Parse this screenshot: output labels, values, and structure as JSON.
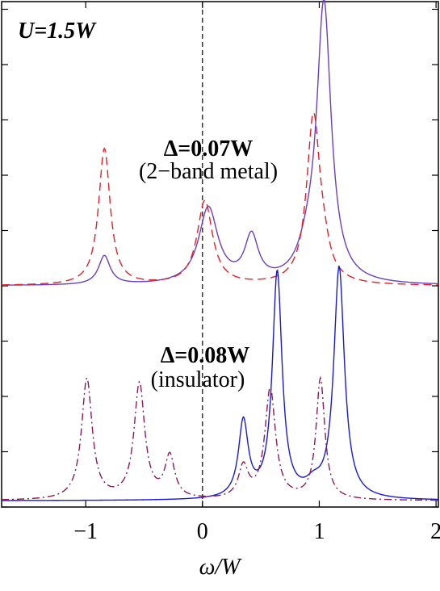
{
  "chart_data": {
    "type": "line",
    "xlabel": "ω/W",
    "ylabel": "",
    "xlim": [
      -1.72,
      2.02
    ],
    "ylim": [
      0,
      1
    ],
    "x_ticks": [
      -1,
      0,
      1,
      2
    ],
    "x_tick_labels": [
      "−1",
      "0",
      "1",
      "2"
    ],
    "grid": false,
    "annotations": {
      "u_label": "U=1.5W",
      "metal_line1": "Δ=0.07W",
      "metal_line2": "(2−band metal)",
      "insulator_line1": "Δ=0.08W",
      "insulator_line2": "(insulator)"
    },
    "fermi_level_x": 0,
    "colors": {
      "metal_solid": "#6a3fc0",
      "metal_dashed": "#e0202a",
      "insulator_solid": "#1a1ad0",
      "insulator_dashdot": "#8a1a5a"
    },
    "series": [
      {
        "id": "metal_solid",
        "style": "solid",
        "peaks": [
          [
            -0.84,
            0.055,
            0.06
          ],
          [
            0.05,
            0.145,
            0.1
          ],
          [
            0.42,
            0.085,
            0.07
          ],
          [
            1.04,
            0.53,
            0.075
          ],
          [
            0.9,
            0.04,
            0.1
          ]
        ],
        "baseline": 0.43,
        "dip": [
          -0.45,
          0.015
        ]
      },
      {
        "id": "metal_dashed",
        "style": "dashed",
        "peaks": [
          [
            -0.84,
            0.26,
            0.06
          ],
          [
            0.02,
            0.16,
            0.08
          ],
          [
            0.95,
            0.32,
            0.07
          ],
          [
            1.04,
            0.03,
            0.06
          ]
        ],
        "baseline": 0.43
      },
      {
        "id": "insulator_solid",
        "style": "solid",
        "peaks": [
          [
            0.35,
            0.145,
            0.05
          ],
          [
            0.64,
            0.43,
            0.05
          ],
          [
            1.17,
            0.44,
            0.055
          ],
          [
            0.95,
            0.02,
            0.08
          ]
        ],
        "baseline": 0.012
      },
      {
        "id": "insulator_dashdot",
        "style": "dashdot",
        "peaks": [
          [
            -0.99,
            0.23,
            0.055
          ],
          [
            -0.54,
            0.22,
            0.055
          ],
          [
            -0.28,
            0.08,
            0.05
          ],
          [
            0.35,
            0.06,
            0.05
          ],
          [
            0.58,
            0.21,
            0.055
          ],
          [
            1.01,
            0.23,
            0.045
          ]
        ],
        "baseline": 0.012
      }
    ]
  }
}
